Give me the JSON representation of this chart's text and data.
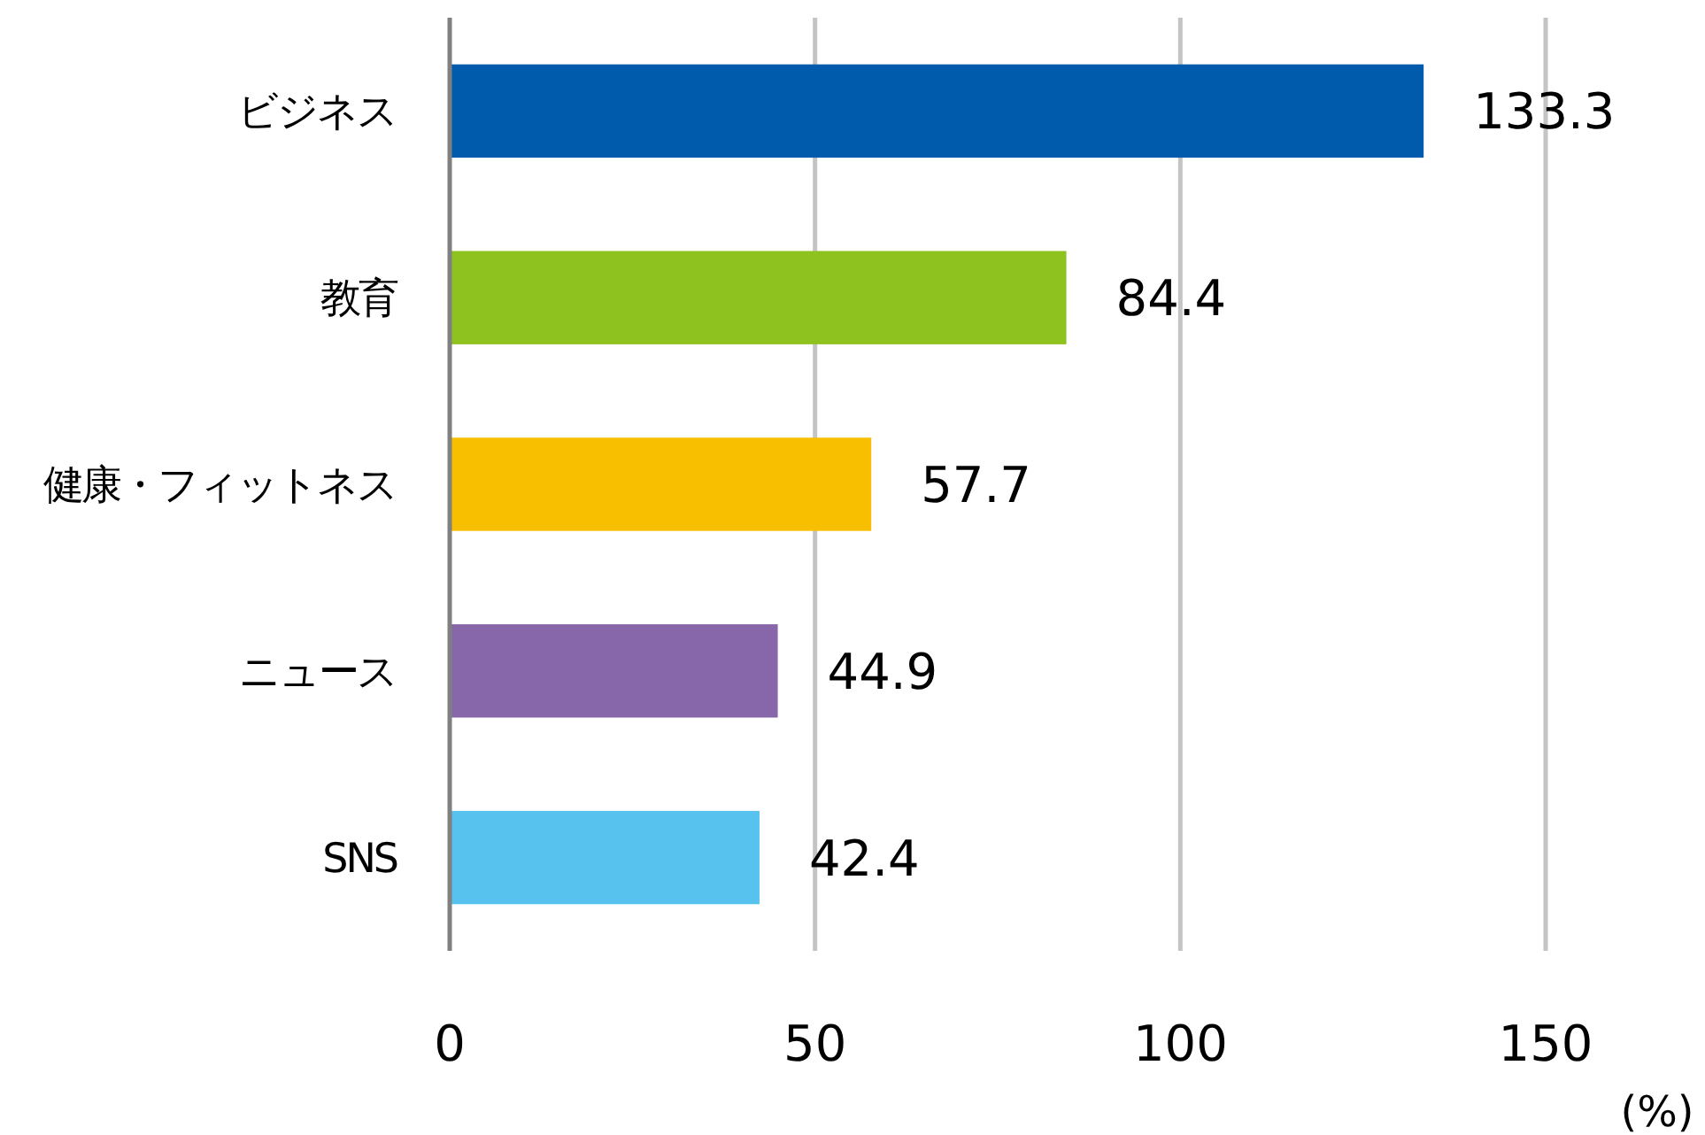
{
  "chart_data": {
    "type": "bar",
    "orientation": "horizontal",
    "xlabel": "(%)",
    "categories": [
      "ビジネス",
      "教育",
      "健康・フィットネス",
      "ニュース",
      "SNS"
    ],
    "values": [
      133.3,
      84.4,
      57.7,
      44.9,
      42.4
    ],
    "colors": [
      "#005bac",
      "#8dc21f",
      "#f8bf00",
      "#8766aa",
      "#57c2ee"
    ],
    "xlim": [
      0,
      150
    ],
    "xticks": [
      0,
      50,
      100,
      150
    ],
    "grid": "x",
    "data_labels": true
  }
}
